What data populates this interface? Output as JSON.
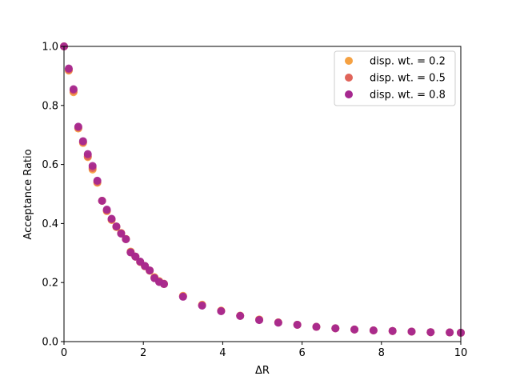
{
  "chart_data": {
    "type": "scatter",
    "title": "",
    "xlabel": "ΔR",
    "ylabel": "Acceptance Ratio",
    "xlim": [
      0,
      10
    ],
    "ylim": [
      0,
      1
    ],
    "xticks": [
      0,
      2,
      4,
      6,
      8,
      10
    ],
    "yticks": [
      0.0,
      0.2,
      0.4,
      0.6,
      0.8,
      1.0
    ],
    "xtick_labels": [
      "0",
      "2",
      "4",
      "6",
      "8",
      "10"
    ],
    "ytick_labels": [
      "0.0",
      "0.2",
      "0.4",
      "0.6",
      "0.8",
      "1.0"
    ],
    "grid": false,
    "legend_position": "top-right",
    "x": [
      0,
      0.12,
      0.24,
      0.36,
      0.48,
      0.6,
      0.72,
      0.84,
      0.96,
      1.08,
      1.2,
      1.32,
      1.44,
      1.56,
      1.68,
      1.8,
      1.92,
      2.04,
      2.16,
      2.28,
      2.4,
      2.52,
      3.0,
      3.48,
      3.96,
      4.44,
      4.92,
      5.4,
      5.88,
      6.36,
      6.84,
      7.32,
      7.8,
      8.28,
      8.76,
      9.24,
      9.72,
      10.0
    ],
    "series": [
      {
        "name": "disp. wt. = 0.2",
        "color": "#f5a142",
        "values": [
          1.0,
          0.918,
          0.845,
          0.722,
          0.673,
          0.625,
          0.583,
          0.538,
          0.477,
          0.442,
          0.412,
          0.388,
          0.368,
          0.348,
          0.305,
          0.288,
          0.27,
          0.255,
          0.24,
          0.218,
          0.205,
          0.195,
          0.155,
          0.125,
          0.105,
          0.088,
          0.075,
          0.065,
          0.057,
          0.05,
          0.045,
          0.041,
          0.038,
          0.036,
          0.034,
          0.032,
          0.031,
          0.03
        ]
      },
      {
        "name": "disp. wt. = 0.5",
        "color": "#e0645a",
        "values": [
          1.0,
          0.921,
          0.85,
          0.725,
          0.676,
          0.628,
          0.588,
          0.541,
          0.477,
          0.444,
          0.414,
          0.39,
          0.367,
          0.347,
          0.303,
          0.288,
          0.27,
          0.256,
          0.241,
          0.216,
          0.203,
          0.196,
          0.153,
          0.123,
          0.104,
          0.087,
          0.074,
          0.065,
          0.057,
          0.05,
          0.045,
          0.041,
          0.038,
          0.036,
          0.034,
          0.032,
          0.031,
          0.03
        ]
      },
      {
        "name": "disp. wt. = 0.8",
        "color": "#a6288f",
        "values": [
          1.0,
          0.925,
          0.855,
          0.728,
          0.679,
          0.635,
          0.595,
          0.545,
          0.477,
          0.447,
          0.416,
          0.39,
          0.366,
          0.347,
          0.302,
          0.288,
          0.271,
          0.256,
          0.241,
          0.215,
          0.202,
          0.195,
          0.152,
          0.122,
          0.103,
          0.087,
          0.073,
          0.064,
          0.057,
          0.05,
          0.045,
          0.041,
          0.038,
          0.036,
          0.034,
          0.032,
          0.031,
          0.03
        ]
      }
    ]
  }
}
